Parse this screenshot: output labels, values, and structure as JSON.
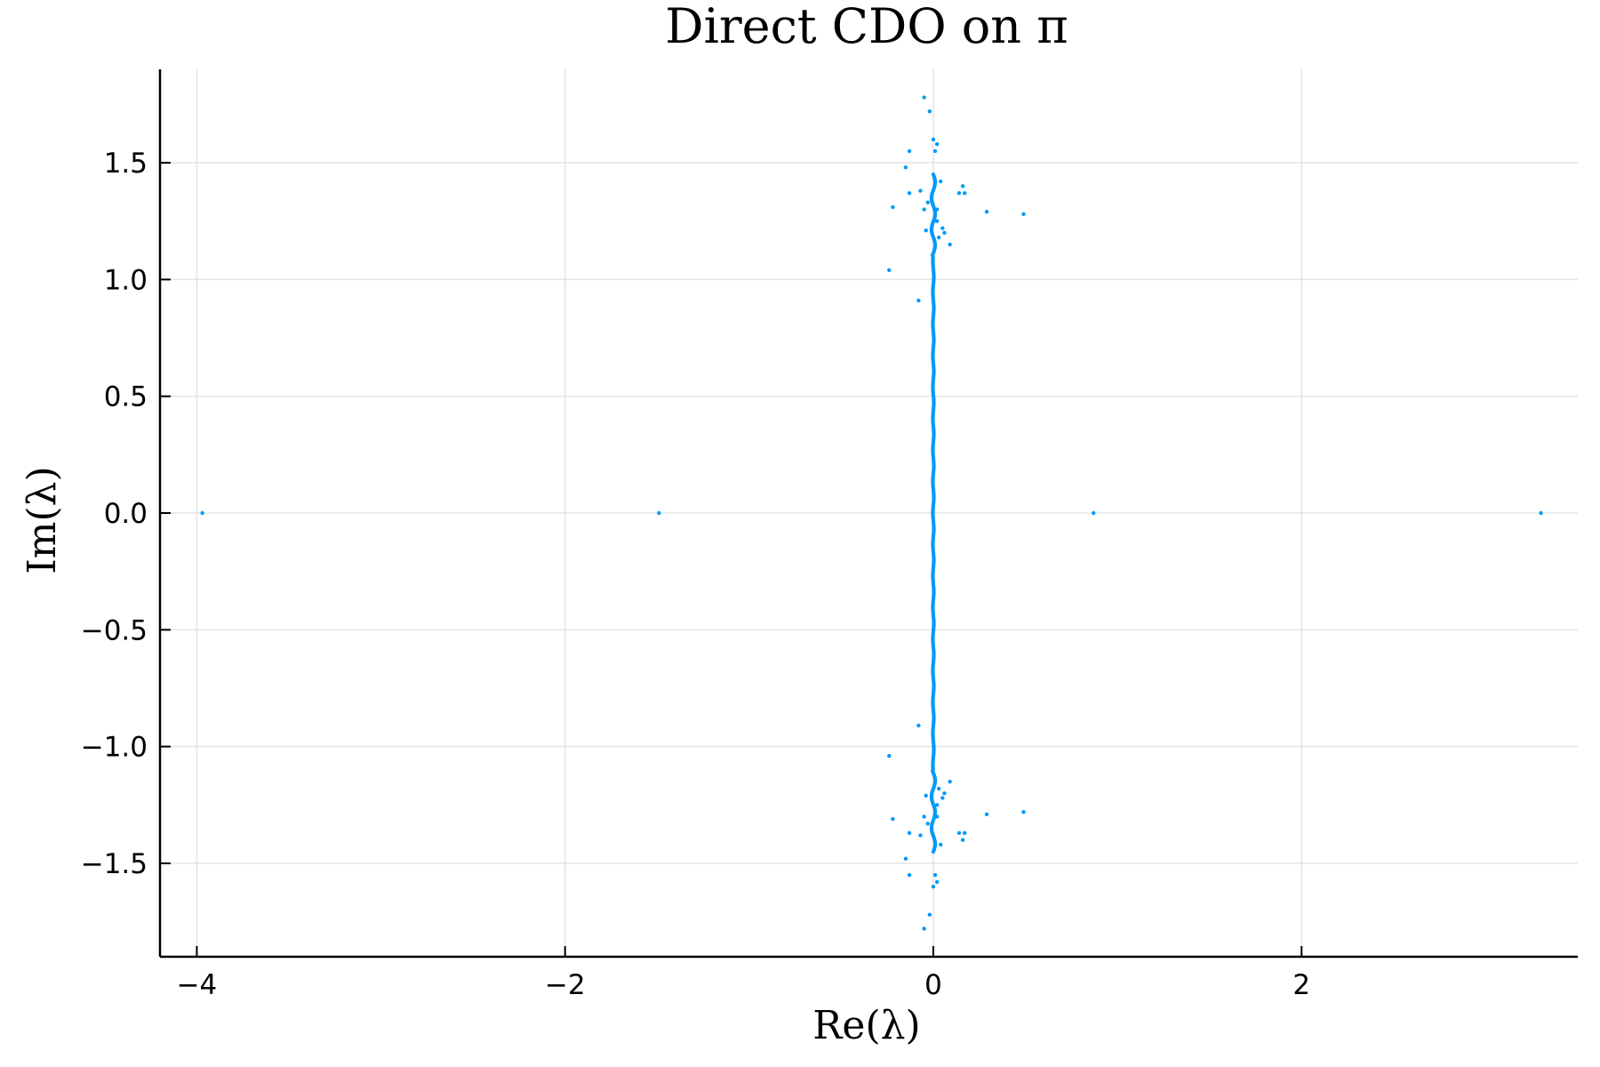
{
  "chart_data": {
    "type": "scatter",
    "title": "Direct CDO on π",
    "xlabel": "Re(λ)",
    "ylabel": "Im(λ)",
    "xlim": [
      -4.2,
      3.5
    ],
    "ylim": [
      -1.9,
      1.9
    ],
    "xticks": [
      -4,
      -2,
      0,
      2
    ],
    "xtick_labels": [
      "−4",
      "−2",
      "0",
      "2"
    ],
    "yticks": [
      -1.5,
      -1.0,
      -0.5,
      0.0,
      0.5,
      1.0,
      1.5
    ],
    "ytick_labels": [
      "−1.5",
      "−1.0",
      "−0.5",
      "0.0",
      "0.5",
      "1.0",
      "1.5"
    ],
    "grid": true,
    "legend": false,
    "color": "#009af9",
    "series": [
      {
        "points": [
          [
            -3.97,
            0.0
          ],
          [
            -1.49,
            0.0
          ],
          [
            0.87,
            0.0
          ],
          [
            3.3,
            0.0
          ],
          [
            -0.05,
            1.78
          ],
          [
            -0.02,
            1.72
          ],
          [
            0.0,
            1.6
          ],
          [
            0.02,
            1.58
          ],
          [
            0.01,
            1.55
          ],
          [
            -0.13,
            1.55
          ],
          [
            -0.15,
            1.48
          ],
          [
            -0.13,
            1.37
          ],
          [
            -0.07,
            1.38
          ],
          [
            -0.03,
            1.33
          ],
          [
            -0.22,
            1.31
          ],
          [
            -0.05,
            1.3
          ],
          [
            0.02,
            1.3
          ],
          [
            0.05,
            1.22
          ],
          [
            0.06,
            1.2
          ],
          [
            -0.04,
            1.21
          ],
          [
            0.09,
            1.15
          ],
          [
            0.14,
            1.37
          ],
          [
            0.17,
            1.37
          ],
          [
            0.16,
            1.4
          ],
          [
            0.29,
            1.29
          ],
          [
            0.49,
            1.28
          ],
          [
            -0.24,
            1.04
          ],
          [
            -0.08,
            0.91
          ],
          [
            0.03,
            1.18
          ],
          [
            0.04,
            1.42
          ],
          [
            0.02,
            1.25
          ],
          [
            -0.05,
            -1.78
          ],
          [
            -0.02,
            -1.72
          ],
          [
            0.0,
            -1.6
          ],
          [
            0.02,
            -1.58
          ],
          [
            0.01,
            -1.55
          ],
          [
            -0.13,
            -1.55
          ],
          [
            -0.15,
            -1.48
          ],
          [
            -0.13,
            -1.37
          ],
          [
            -0.07,
            -1.38
          ],
          [
            -0.03,
            -1.33
          ],
          [
            -0.22,
            -1.31
          ],
          [
            -0.05,
            -1.3
          ],
          [
            0.02,
            -1.3
          ],
          [
            0.05,
            -1.22
          ],
          [
            0.06,
            -1.2
          ],
          [
            -0.04,
            -1.21
          ],
          [
            0.09,
            -1.15
          ],
          [
            0.14,
            -1.37
          ],
          [
            0.17,
            -1.37
          ],
          [
            0.16,
            -1.4
          ],
          [
            0.29,
            -1.29
          ],
          [
            0.49,
            -1.28
          ],
          [
            -0.24,
            -1.04
          ],
          [
            -0.08,
            -0.91
          ],
          [
            0.03,
            -1.18
          ],
          [
            0.04,
            -1.42
          ],
          [
            0.02,
            -1.25
          ]
        ],
        "dense_band": {
          "x_center": 0.0,
          "y_range": [
            -1.45,
            1.45
          ],
          "x_spread": 0.02,
          "count": 320
        }
      }
    ]
  }
}
